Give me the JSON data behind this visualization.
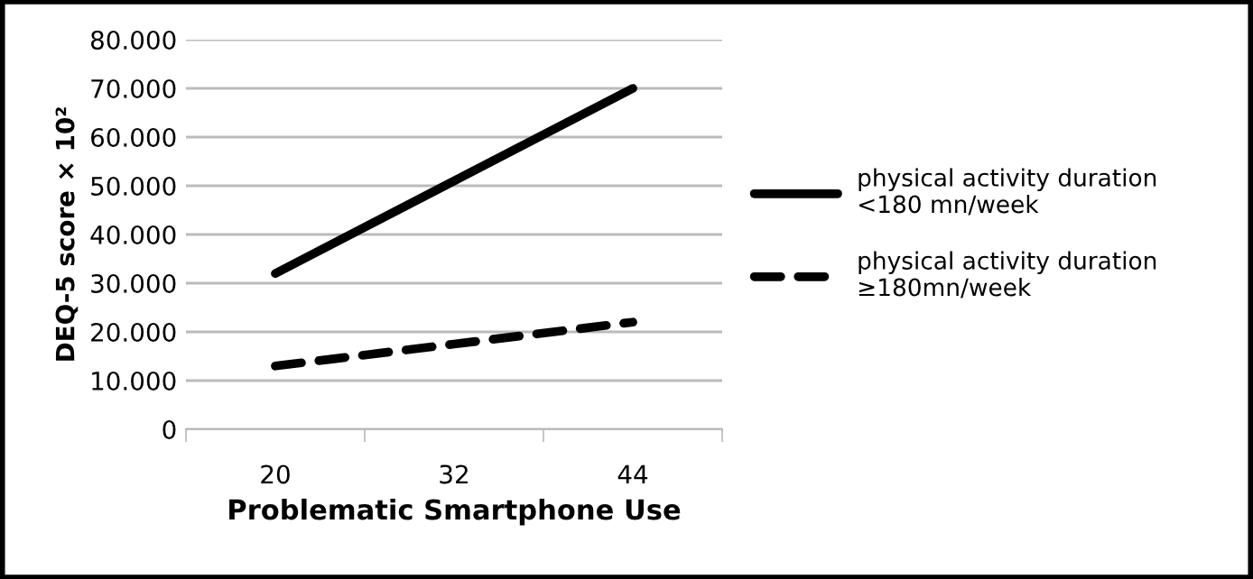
{
  "chart_data": {
    "type": "line",
    "xlabel": "Problematic Smartphone Use",
    "ylabel": "DEQ-5 score × 10²",
    "categories": [
      "20",
      "32",
      "44"
    ],
    "series": [
      {
        "name": "physical activity duration\n<180 mn/week",
        "color": "#000000",
        "values": [
          32000,
          51000,
          70000
        ],
        "line_style": "solid"
      },
      {
        "name": "physical activity duration\n≥180mn/week",
        "color": "#000000",
        "values": [
          13000,
          17500,
          22000
        ],
        "line_style": "dashed"
      }
    ],
    "ylim": [
      0,
      80000
    ],
    "yticks": [
      0,
      {
        "value": 10000,
        "label": "10.000"
      },
      {
        "value": 20000,
        "label": "20.000"
      },
      {
        "value": 30000,
        "label": "30.000"
      },
      {
        "value": 40000,
        "label": "40.000"
      },
      {
        "value": 50000,
        "label": "50.000"
      },
      {
        "value": 60000,
        "label": "60.000"
      },
      {
        "value": 70000,
        "label": "70.000"
      },
      {
        "value": 80000,
        "label": "80.000"
      }
    ],
    "grid": "y",
    "legend": "right",
    "marker": "none"
  }
}
